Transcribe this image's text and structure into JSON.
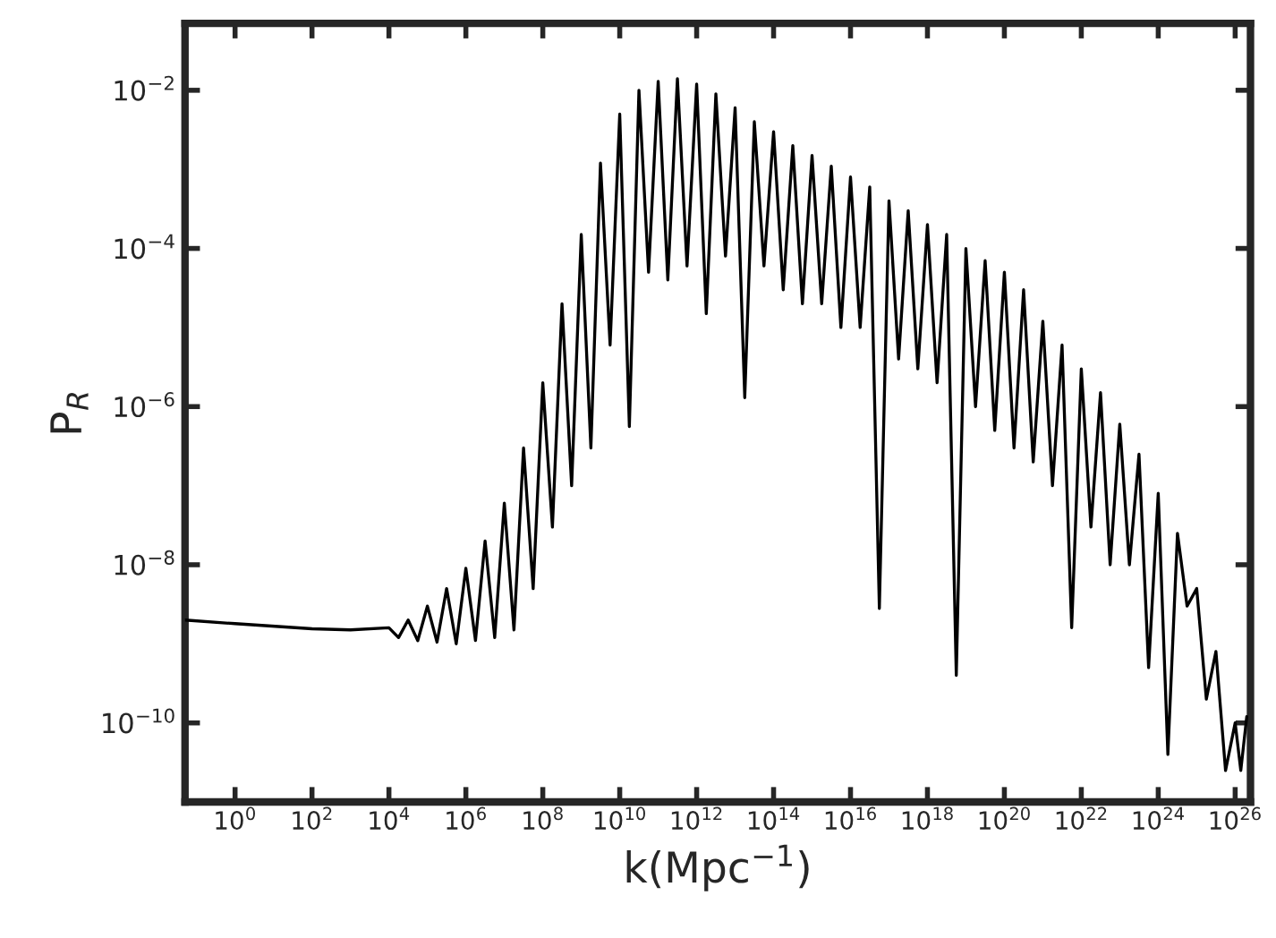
{
  "chart_data": {
    "type": "line",
    "xlabel": "k(Mpc$^{−1}$)",
    "ylabel": "P$_{R}$",
    "log": "xy",
    "grid": false,
    "legend": false,
    "marker": "none",
    "line_style": "solid",
    "xlim": [
      0.05,
      2.5e+26
    ],
    "ylim": [
      1e-11,
      0.07
    ],
    "xticks": [
      {
        "value": 1,
        "label": "10$^{0}$"
      },
      {
        "value": 100.0,
        "label": "10$^{2}$"
      },
      {
        "value": 10000.0,
        "label": "10$^{4}$"
      },
      {
        "value": 1000000.0,
        "label": "10$^{6}$"
      },
      {
        "value": 100000000.0,
        "label": "10$^{8}$"
      },
      {
        "value": 10000000000.0,
        "label": "10$^{10}$"
      },
      {
        "value": 1000000000000.0,
        "label": "10$^{12}$"
      },
      {
        "value": 100000000000000.0,
        "label": "10$^{14}$"
      },
      {
        "value": 1e+16,
        "label": "10$^{16}$"
      },
      {
        "value": 1e+18,
        "label": "10$^{18}$"
      },
      {
        "value": 1e+20,
        "label": "10$^{20}$"
      },
      {
        "value": 1e+22,
        "label": "10$^{22}$"
      },
      {
        "value": 1e+24,
        "label": "10$^{24}$"
      },
      {
        "value": 1e+26,
        "label": "10$^{26}$"
      }
    ],
    "yticks": [
      {
        "value": 1e-10,
        "label": "10$^{−10}$"
      },
      {
        "value": 1e-08,
        "label": "10$^{−8}$"
      },
      {
        "value": 1e-06,
        "label": "10$^{−6}$"
      },
      {
        "value": 0.0001,
        "label": "10$^{−4}$"
      },
      {
        "value": 0.01,
        "label": "10$^{−2}$"
      }
    ],
    "series": [
      {
        "color": "#000000",
        "x": [
          0.05,
          1,
          100,
          1000,
          10000.0,
          17800.0,
          31600.0,
          56200.0,
          100000.0,
          178000.0,
          316000.0,
          562000.0,
          1000000.0,
          1780000.0,
          3160000.0,
          5620000.0,
          10000000.0,
          17800000.0,
          31600000.0,
          56200000.0,
          100000000.0,
          178000000.0,
          316000000.0,
          562000000.0,
          1000000000.0,
          1780000000.0,
          3160000000.0,
          5620000000.0,
          10000000000.0,
          17800000000.0,
          31600000000.0,
          56200000000.0,
          100000000000.0,
          178000000000.0,
          316000000000.0,
          562000000000.0,
          1000000000000.0,
          1780000000000.0,
          3160000000000.0,
          5620000000000.0,
          10000000000000.0,
          17800000000000.0,
          31600000000000.0,
          56200000000000.0,
          100000000000000.0,
          178000000000000.0,
          316000000000000.0,
          562000000000000.0,
          1000000000000000.0,
          1780000000000000.0,
          3160000000000000.0,
          5620000000000000.0,
          1e+16,
          1.78e+16,
          3.16e+16,
          5.62e+16,
          1e+17,
          1.78e+17,
          3.16e+17,
          5.62e+17,
          1e+18,
          1.78e+18,
          3.16e+18,
          5.62e+18,
          1e+19,
          1.78e+19,
          3.16e+19,
          5.62e+19,
          1e+20,
          1.78e+20,
          3.16e+20,
          5.62e+20,
          1e+21,
          1.78e+21,
          3.16e+21,
          5.62e+21,
          1e+22,
          1.78e+22,
          3.16e+22,
          5.62e+22,
          1e+23,
          1.78e+23,
          3.16e+23,
          5.62e+23,
          1e+24,
          1.78e+24,
          3.16e+24,
          5.62e+24,
          1e+25,
          1.78e+25,
          3.16e+25,
          5.62e+25,
          1e+26,
          1.4e+26,
          2e+26
        ],
        "values": [
          2e-09,
          1.8e-09,
          1.55e-09,
          1.5e-09,
          1.6e-09,
          1.2e-09,
          2e-09,
          1.1e-09,
          3e-09,
          1.05e-09,
          5e-09,
          1e-09,
          9e-09,
          1.1e-09,
          2e-08,
          1.2e-09,
          6e-08,
          1.5e-09,
          3e-07,
          5e-09,
          2e-06,
          3e-08,
          2e-05,
          1e-07,
          0.00015,
          3e-07,
          0.0012,
          6e-06,
          0.005,
          5.6e-07,
          0.01,
          5e-05,
          0.013,
          4e-05,
          0.014,
          6e-05,
          0.012,
          1.5e-05,
          0.009,
          8e-05,
          0.006,
          1.3e-06,
          0.004,
          6e-05,
          0.003,
          3e-05,
          0.002,
          2e-05,
          0.0015,
          2e-05,
          0.0011,
          1e-05,
          0.0008,
          1e-05,
          0.0006,
          2.8e-09,
          0.0004,
          4e-06,
          0.0003,
          3e-06,
          0.0002,
          2e-06,
          0.00015,
          4e-10,
          0.0001,
          1e-06,
          7e-05,
          5e-07,
          5e-05,
          3e-07,
          3e-05,
          2e-07,
          1.2e-05,
          1e-07,
          6e-06,
          1.6e-09,
          3e-06,
          3e-08,
          1.5e-06,
          1e-08,
          6e-07,
          1e-08,
          2.5e-07,
          5e-10,
          8e-08,
          4e-11,
          2.5e-08,
          3e-09,
          5e-09,
          2e-10,
          8e-10,
          2.5e-11,
          1e-10,
          2.5e-11,
          1.2e-10
        ]
      }
    ]
  }
}
